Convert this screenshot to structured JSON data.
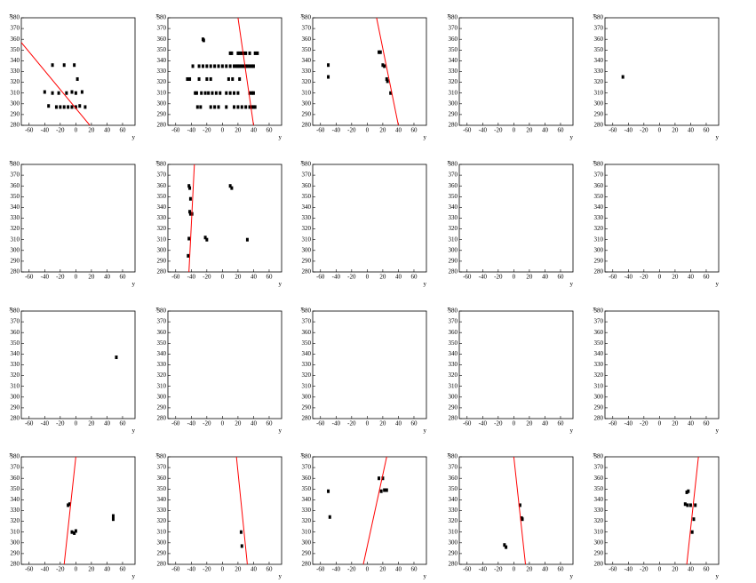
{
  "chart_data": [
    {
      "type": "scatter",
      "x_label": "y",
      "y_label": "x",
      "xlim": [
        -70,
        76
      ],
      "ylim": [
        280,
        380
      ],
      "xticks": [
        -60,
        -40,
        -20,
        0,
        20,
        40,
        60
      ],
      "yticks": [
        280,
        290,
        300,
        310,
        320,
        330,
        340,
        350,
        360,
        370,
        380
      ],
      "series": [
        {
          "color": "#000000",
          "x": [
            -30,
            -15,
            -2,
            -40,
            -30,
            -22,
            -12,
            -5,
            0,
            8,
            2,
            -35,
            -25,
            -20,
            -15,
            -10,
            -5,
            0,
            5,
            12
          ],
          "values": [
            336,
            336,
            336,
            311,
            310,
            310,
            310,
            311,
            310,
            311,
            323,
            298,
            297,
            297,
            297,
            297,
            297,
            297,
            298,
            297
          ]
        },
        {
          "type": "line",
          "color": "#ff0000",
          "x": [
            -70,
            18
          ],
          "values": [
            357,
            280
          ]
        }
      ]
    },
    {
      "type": "scatter",
      "x_label": "y",
      "y_label": "x",
      "xlim": [
        -70,
        76
      ],
      "ylim": [
        280,
        380
      ],
      "xticks": [
        -60,
        -40,
        -20,
        0,
        20,
        40,
        60
      ],
      "yticks": [
        280,
        290,
        300,
        310,
        320,
        330,
        340,
        350,
        360,
        370,
        380
      ],
      "series": [
        {
          "color": "#000000",
          "x": [
            -38,
            -30,
            -25,
            -20,
            -15,
            -10,
            -5,
            0,
            5,
            10,
            15,
            18,
            20,
            22,
            25,
            28,
            30,
            32,
            35,
            38,
            40,
            10,
            12,
            20,
            22,
            25,
            28,
            30,
            35,
            42,
            45,
            -35,
            -33,
            -27,
            -22,
            -18,
            -13,
            -8,
            -3,
            5,
            10,
            15,
            20,
            35,
            38,
            40,
            -32,
            -28,
            -15,
            -10,
            -5,
            5,
            15,
            20,
            25,
            30,
            35,
            38,
            40,
            42,
            -45,
            -42,
            -30,
            -20,
            -15,
            8,
            13,
            22,
            -25,
            -24
          ],
          "values": [
            335,
            335,
            335,
            335,
            335,
            335,
            335,
            335,
            335,
            335,
            335,
            335,
            335,
            335,
            335,
            335,
            335,
            335,
            335,
            335,
            335,
            347,
            347,
            347,
            347,
            347,
            347,
            347,
            347,
            347,
            347,
            310,
            310,
            310,
            310,
            310,
            310,
            310,
            310,
            310,
            310,
            310,
            310,
            310,
            310,
            310,
            297,
            297,
            297,
            297,
            297,
            297,
            297,
            297,
            297,
            297,
            297,
            297,
            297,
            297,
            323,
            323,
            323,
            323,
            323,
            323,
            323,
            323,
            360,
            359
          ]
        },
        {
          "type": "line",
          "color": "#ff0000",
          "x": [
            20,
            40
          ],
          "values": [
            380,
            280
          ]
        }
      ]
    },
    {
      "type": "scatter",
      "x_label": "y",
      "y_label": "x",
      "xlim": [
        -70,
        76
      ],
      "ylim": [
        280,
        380
      ],
      "xticks": [
        -60,
        -40,
        -20,
        0,
        20,
        40,
        60
      ],
      "yticks": [
        280,
        290,
        300,
        310,
        320,
        330,
        340,
        350,
        360,
        370,
        380
      ],
      "series": [
        {
          "color": "#000000",
          "x": [
            -50,
            -50,
            15,
            17,
            20,
            22,
            25,
            26,
            30
          ],
          "values": [
            336,
            325,
            348,
            348,
            336,
            335,
            323,
            321,
            310
          ]
        },
        {
          "type": "line",
          "color": "#ff0000",
          "x": [
            12,
            40
          ],
          "values": [
            380,
            280
          ]
        }
      ]
    },
    {
      "type": "scatter",
      "x_label": "y",
      "y_label": "x",
      "xlim": [
        -70,
        76
      ],
      "ylim": [
        280,
        380
      ],
      "xticks": [
        -60,
        -40,
        -20,
        0,
        20,
        40,
        60
      ],
      "yticks": [
        280,
        290,
        300,
        310,
        320,
        330,
        340,
        350,
        360,
        370,
        380
      ],
      "series": [
        {
          "color": "#000000",
          "x": [],
          "values": []
        }
      ]
    },
    {
      "type": "scatter",
      "x_label": "y",
      "y_label": "x",
      "xlim": [
        -70,
        76
      ],
      "ylim": [
        280,
        380
      ],
      "xticks": [
        -60,
        -40,
        -20,
        0,
        20,
        40,
        60
      ],
      "yticks": [
        280,
        290,
        300,
        310,
        320,
        330,
        340,
        350,
        360,
        370,
        380
      ],
      "series": [
        {
          "color": "#000000",
          "x": [
            -47
          ],
          "values": [
            325
          ]
        }
      ]
    },
    {
      "type": "scatter",
      "x_label": "y",
      "y_label": "x",
      "xlim": [
        -70,
        76
      ],
      "ylim": [
        280,
        380
      ],
      "xticks": [
        -60,
        -40,
        -20,
        0,
        20,
        40,
        60
      ],
      "yticks": [
        280,
        290,
        300,
        310,
        320,
        330,
        340,
        350,
        360,
        370,
        380
      ],
      "series": [
        {
          "color": "#000000",
          "x": [],
          "values": []
        }
      ]
    },
    {
      "type": "scatter",
      "x_label": "y",
      "y_label": "x",
      "xlim": [
        -70,
        76
      ],
      "ylim": [
        280,
        380
      ],
      "xticks": [
        -60,
        -40,
        -20,
        0,
        20,
        40,
        60
      ],
      "yticks": [
        280,
        290,
        300,
        310,
        320,
        330,
        340,
        350,
        360,
        370,
        380
      ],
      "series": [
        {
          "color": "#000000",
          "x": [
            -43,
            -42,
            -41,
            -42,
            -41,
            -39,
            -43,
            -44,
            -22,
            -20,
            10,
            12,
            32
          ],
          "values": [
            360,
            358,
            348,
            336,
            334,
            334,
            311,
            295,
            312,
            310,
            360,
            358,
            310
          ]
        },
        {
          "type": "line",
          "color": "#ff0000",
          "x": [
            -43,
            -36
          ],
          "values": [
            280,
            380
          ]
        }
      ]
    },
    {
      "type": "scatter",
      "x_label": "y",
      "y_label": "x",
      "xlim": [
        -70,
        76
      ],
      "ylim": [
        280,
        380
      ],
      "xticks": [
        -60,
        -40,
        -20,
        0,
        20,
        40,
        60
      ],
      "yticks": [
        280,
        290,
        300,
        310,
        320,
        330,
        340,
        350,
        360,
        370,
        380
      ],
      "series": [
        {
          "color": "#000000",
          "x": [],
          "values": []
        }
      ]
    },
    {
      "type": "scatter",
      "x_label": "y",
      "y_label": "x",
      "xlim": [
        -70,
        76
      ],
      "ylim": [
        280,
        380
      ],
      "xticks": [
        -60,
        -40,
        -20,
        0,
        20,
        40,
        60
      ],
      "yticks": [
        280,
        290,
        300,
        310,
        320,
        330,
        340,
        350,
        360,
        370,
        380
      ],
      "series": [
        {
          "color": "#000000",
          "x": [],
          "values": []
        }
      ]
    },
    {
      "type": "scatter",
      "x_label": "y",
      "y_label": "x",
      "xlim": [
        -70,
        76
      ],
      "ylim": [
        280,
        380
      ],
      "xticks": [
        -60,
        -40,
        -20,
        0,
        20,
        40,
        60
      ],
      "yticks": [
        280,
        290,
        300,
        310,
        320,
        330,
        340,
        350,
        360,
        370,
        380
      ],
      "series": [
        {
          "color": "#000000",
          "x": [],
          "values": []
        }
      ]
    },
    {
      "type": "scatter",
      "x_label": "y",
      "y_label": "x",
      "xlim": [
        -70,
        76
      ],
      "ylim": [
        280,
        380
      ],
      "xticks": [
        -60,
        -40,
        -20,
        0,
        20,
        40,
        60
      ],
      "yticks": [
        280,
        290,
        300,
        310,
        320,
        330,
        340,
        350,
        360,
        370,
        380
      ],
      "series": [
        {
          "color": "#000000",
          "x": [
            52
          ],
          "values": [
            337
          ]
        }
      ]
    },
    {
      "type": "scatter",
      "x_label": "y",
      "y_label": "x",
      "xlim": [
        -70,
        76
      ],
      "ylim": [
        280,
        380
      ],
      "xticks": [
        -60,
        -40,
        -20,
        0,
        20,
        40,
        60
      ],
      "yticks": [
        280,
        290,
        300,
        310,
        320,
        330,
        340,
        350,
        360,
        370,
        380
      ],
      "series": [
        {
          "color": "#000000",
          "x": [],
          "values": []
        }
      ]
    },
    {
      "type": "scatter",
      "x_label": "y",
      "y_label": "x",
      "xlim": [
        -70,
        76
      ],
      "ylim": [
        280,
        380
      ],
      "xticks": [
        -60,
        -40,
        -20,
        0,
        20,
        40,
        60
      ],
      "yticks": [
        280,
        290,
        300,
        310,
        320,
        330,
        340,
        350,
        360,
        370,
        380
      ],
      "series": [
        {
          "color": "#000000",
          "x": [],
          "values": []
        }
      ]
    },
    {
      "type": "scatter",
      "x_label": "y",
      "y_label": "x",
      "xlim": [
        -70,
        76
      ],
      "ylim": [
        280,
        380
      ],
      "xticks": [
        -60,
        -40,
        -20,
        0,
        20,
        40,
        60
      ],
      "yticks": [
        280,
        290,
        300,
        310,
        320,
        330,
        340,
        350,
        360,
        370,
        380
      ],
      "series": [
        {
          "color": "#000000",
          "x": [],
          "values": []
        }
      ]
    },
    {
      "type": "scatter",
      "x_label": "y",
      "y_label": "x",
      "xlim": [
        -70,
        76
      ],
      "ylim": [
        280,
        380
      ],
      "xticks": [
        -60,
        -40,
        -20,
        0,
        20,
        40,
        60
      ],
      "yticks": [
        280,
        290,
        300,
        310,
        320,
        330,
        340,
        350,
        360,
        370,
        380
      ],
      "series": [
        {
          "color": "#000000",
          "x": [],
          "values": []
        }
      ]
    },
    {
      "type": "scatter",
      "x_label": "y",
      "y_label": "x",
      "xlim": [
        -70,
        76
      ],
      "ylim": [
        280,
        380
      ],
      "xticks": [
        -60,
        -40,
        -20,
        0,
        20,
        40,
        60
      ],
      "yticks": [
        280,
        290,
        300,
        310,
        320,
        330,
        340,
        350,
        360,
        370,
        380
      ],
      "series": [
        {
          "color": "#000000",
          "x": [
            -10,
            -8,
            -5,
            -2,
            0,
            48,
            48
          ],
          "values": [
            335,
            336,
            310,
            309,
            311,
            325,
            322
          ]
        },
        {
          "type": "line",
          "color": "#ff0000",
          "x": [
            -15,
            0
          ],
          "values": [
            280,
            380
          ]
        }
      ]
    },
    {
      "type": "scatter",
      "x_label": "y",
      "y_label": "x",
      "xlim": [
        -70,
        76
      ],
      "ylim": [
        280,
        380
      ],
      "xticks": [
        -60,
        -40,
        -20,
        0,
        20,
        40,
        60
      ],
      "yticks": [
        280,
        290,
        300,
        310,
        320,
        330,
        340,
        350,
        360,
        370,
        380
      ],
      "series": [
        {
          "color": "#000000",
          "x": [
            24,
            25
          ],
          "values": [
            310,
            297
          ]
        },
        {
          "type": "line",
          "color": "#ff0000",
          "x": [
            18,
            32
          ],
          "values": [
            380,
            280
          ]
        }
      ]
    },
    {
      "type": "scatter",
      "x_label": "y",
      "y_label": "x",
      "xlim": [
        -70,
        76
      ],
      "ylim": [
        280,
        380
      ],
      "xticks": [
        -60,
        -40,
        -20,
        0,
        20,
        40,
        60
      ],
      "yticks": [
        280,
        290,
        300,
        310,
        320,
        330,
        340,
        350,
        360,
        370,
        380
      ],
      "series": [
        {
          "color": "#000000",
          "x": [
            -50,
            -48,
            15,
            20,
            18,
            22,
            25
          ],
          "values": [
            348,
            324,
            360,
            360,
            348,
            349,
            349
          ]
        },
        {
          "type": "line",
          "color": "#ff0000",
          "x": [
            -5,
            25
          ],
          "values": [
            280,
            380
          ]
        }
      ]
    },
    {
      "type": "scatter",
      "x_label": "y",
      "y_label": "x",
      "xlim": [
        -70,
        76
      ],
      "ylim": [
        280,
        380
      ],
      "xticks": [
        -60,
        -40,
        -20,
        0,
        20,
        40,
        60
      ],
      "yticks": [
        280,
        290,
        300,
        310,
        320,
        330,
        340,
        350,
        360,
        370,
        380
      ],
      "series": [
        {
          "color": "#000000",
          "x": [
            -12,
            -10,
            8,
            10,
            11
          ],
          "values": [
            298,
            296,
            335,
            323,
            322
          ]
        },
        {
          "type": "line",
          "color": "#ff0000",
          "x": [
            0,
            15
          ],
          "values": [
            380,
            280
          ]
        }
      ]
    },
    {
      "type": "scatter",
      "x_label": "y",
      "y_label": "x",
      "xlim": [
        -70,
        76
      ],
      "ylim": [
        280,
        380
      ],
      "xticks": [
        -60,
        -40,
        -20,
        0,
        20,
        40,
        60
      ],
      "yticks": [
        280,
        290,
        300,
        310,
        320,
        330,
        340,
        350,
        360,
        370,
        380
      ],
      "series": [
        {
          "color": "#000000",
          "x": [
            35,
            37,
            33,
            36,
            46,
            40,
            42,
            44
          ],
          "values": [
            347,
            348,
            336,
            335,
            335,
            335,
            310,
            322
          ]
        },
        {
          "type": "line",
          "color": "#ff0000",
          "x": [
            35,
            50
          ],
          "values": [
            280,
            380
          ]
        }
      ]
    }
  ]
}
